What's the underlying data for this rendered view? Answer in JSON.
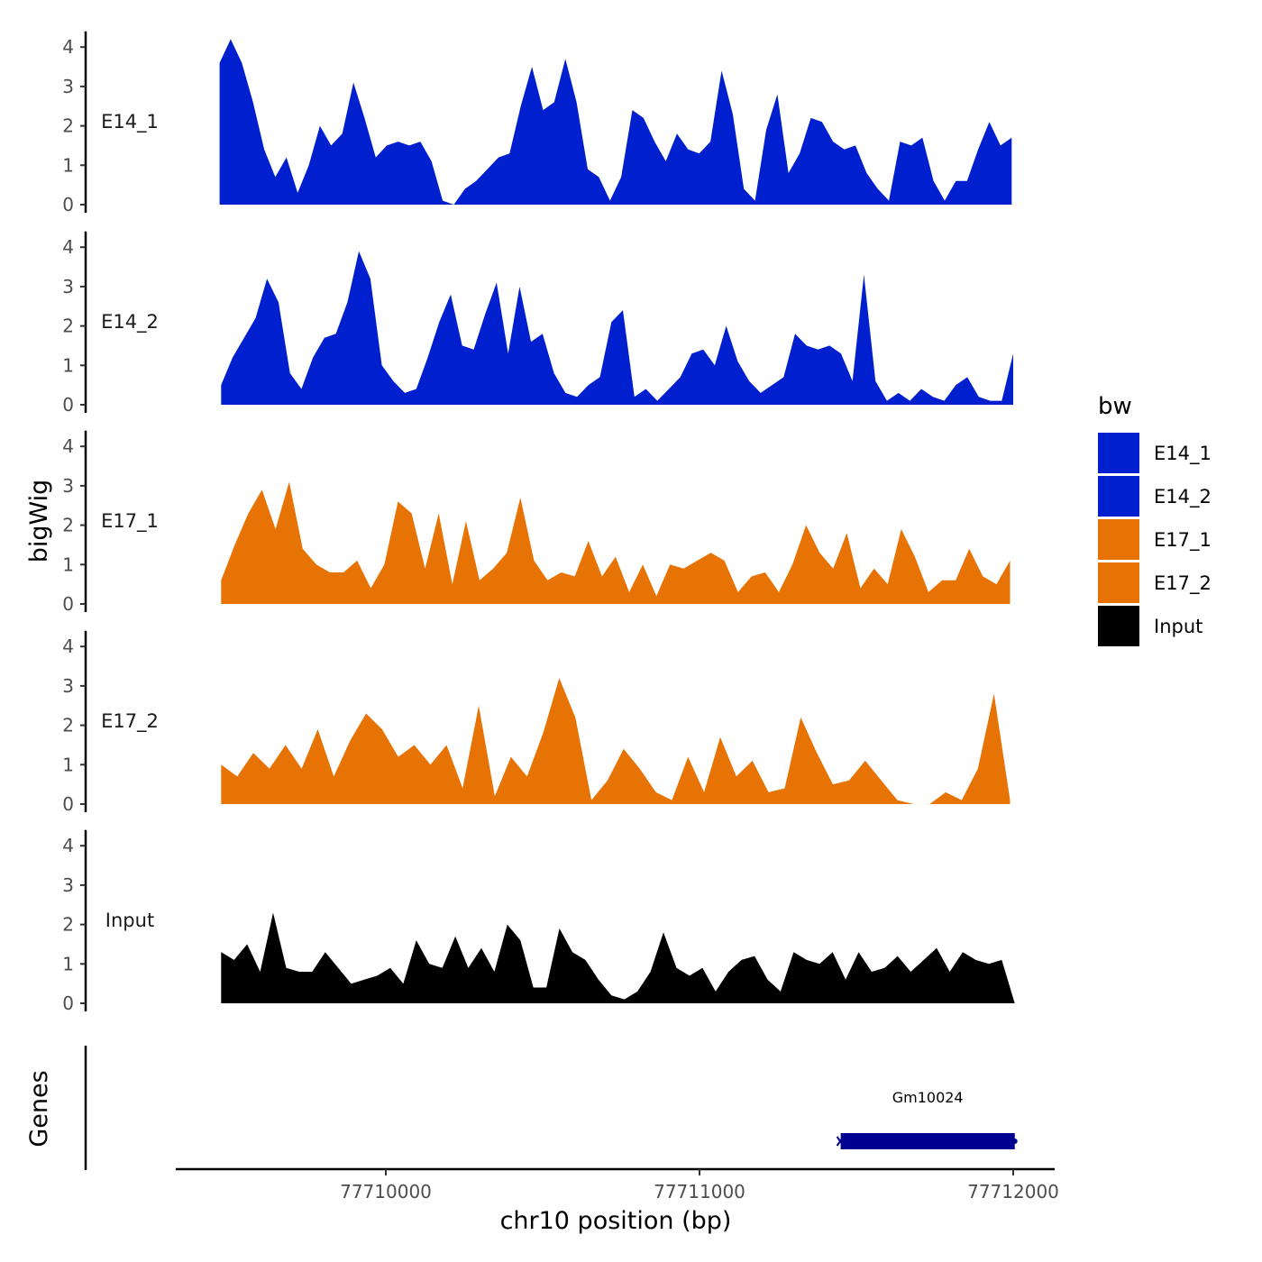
{
  "chart_data": {
    "type": "area",
    "ylabel": "bigWig",
    "xlabel": "chr10 position (bp)",
    "xlim": [
      77709330,
      77712130
    ],
    "x_ticks": [
      77710000,
      77711000,
      77712000
    ],
    "x_tick_labels": [
      "77710000",
      "77711000",
      "77712000"
    ],
    "ylim": [
      0,
      4.5
    ],
    "y_ticks": [
      0,
      1,
      2,
      3,
      4
    ],
    "y_tick_labels": [
      "0",
      "1",
      "2",
      "3",
      "4"
    ],
    "genes_label": "Genes",
    "legend": {
      "title": "bw",
      "position": "right",
      "entries": [
        {
          "label": "E14_1",
          "color": "#0020d0"
        },
        {
          "label": "E14_2",
          "color": "#0020d0"
        },
        {
          "label": "E17_1",
          "color": "#e87305"
        },
        {
          "label": "E17_2",
          "color": "#e87305"
        },
        {
          "label": "Input",
          "color": "#000000"
        }
      ]
    },
    "series": [
      {
        "name": "E14_1",
        "label": "E14_1",
        "color": "#0020d0",
        "x_start": 77709470,
        "x_end": 77711995,
        "values": [
          3.6,
          4.2,
          3.6,
          2.6,
          1.4,
          0.7,
          1.2,
          0.3,
          1.0,
          2.0,
          1.5,
          1.8,
          3.1,
          2.2,
          1.2,
          1.5,
          1.6,
          1.5,
          1.6,
          1.1,
          0.1,
          0.0,
          0.4,
          0.6,
          0.9,
          1.2,
          1.3,
          2.5,
          3.5,
          2.4,
          2.6,
          3.7,
          2.6,
          0.9,
          0.7,
          0.1,
          0.7,
          2.4,
          2.2,
          1.6,
          1.1,
          1.8,
          1.4,
          1.3,
          1.6,
          3.4,
          2.3,
          0.4,
          0.1,
          1.9,
          2.8,
          0.8,
          1.3,
          2.2,
          2.1,
          1.6,
          1.4,
          1.5,
          0.8,
          0.4,
          0.1,
          1.6,
          1.5,
          1.7,
          0.6,
          0.1,
          0.6,
          0.6,
          1.4,
          2.1,
          1.5,
          1.7
        ]
      },
      {
        "name": "E14_2",
        "label": "E14_2",
        "color": "#0020d0",
        "x_start": 77709475,
        "x_end": 77712000,
        "values": [
          0.5,
          1.2,
          1.7,
          2.2,
          3.2,
          2.6,
          0.8,
          0.4,
          1.2,
          1.7,
          1.8,
          2.6,
          3.9,
          3.2,
          1.0,
          0.6,
          0.3,
          0.4,
          1.2,
          2.1,
          2.8,
          1.5,
          1.4,
          2.3,
          3.1,
          1.3,
          3.0,
          1.6,
          1.8,
          0.8,
          0.3,
          0.2,
          0.5,
          0.7,
          2.1,
          2.4,
          0.2,
          0.4,
          0.1,
          0.4,
          0.7,
          1.3,
          1.4,
          1.0,
          2.0,
          1.1,
          0.6,
          0.3,
          0.5,
          0.7,
          1.8,
          1.5,
          1.4,
          1.5,
          1.3,
          0.6,
          3.3,
          0.6,
          0.1,
          0.3,
          0.1,
          0.4,
          0.2,
          0.1,
          0.5,
          0.7,
          0.2,
          0.1,
          0.1,
          1.3
        ]
      },
      {
        "name": "E17_1",
        "label": "E17_1",
        "color": "#e87305",
        "x_start": 77709475,
        "x_end": 77711990,
        "values": [
          0.6,
          1.5,
          2.3,
          2.9,
          1.9,
          3.1,
          1.4,
          1.0,
          0.8,
          0.8,
          1.1,
          0.4,
          1.0,
          2.6,
          2.3,
          0.9,
          2.3,
          0.5,
          2.1,
          0.6,
          0.9,
          1.3,
          2.7,
          1.1,
          0.6,
          0.8,
          0.7,
          1.6,
          0.7,
          1.2,
          0.3,
          1.0,
          0.2,
          1.0,
          0.9,
          1.1,
          1.3,
          1.1,
          0.3,
          0.7,
          0.8,
          0.3,
          1.0,
          2.0,
          1.3,
          0.9,
          1.8,
          0.4,
          0.9,
          0.5,
          1.9,
          1.2,
          0.3,
          0.6,
          0.6,
          1.4,
          0.7,
          0.5,
          1.1
        ]
      },
      {
        "name": "E17_2",
        "label": "E17_2",
        "color": "#e87305",
        "x_start": 77709475,
        "x_end": 77711990,
        "values": [
          1.0,
          0.7,
          1.3,
          0.9,
          1.5,
          0.9,
          1.9,
          0.7,
          1.6,
          2.3,
          1.9,
          1.2,
          1.5,
          1.0,
          1.5,
          0.4,
          2.5,
          0.2,
          1.2,
          0.7,
          1.8,
          3.2,
          2.2,
          0.1,
          0.6,
          1.4,
          0.9,
          0.3,
          0.1,
          1.2,
          0.3,
          1.7,
          0.7,
          1.1,
          0.3,
          0.4,
          2.2,
          1.3,
          0.5,
          0.6,
          1.1,
          0.6,
          0.1,
          0.0,
          0.0,
          0.3,
          0.1,
          0.9,
          2.8,
          0.1
        ]
      },
      {
        "name": "Input",
        "label": "Input",
        "color": "#000000",
        "x_start": 77709475,
        "x_end": 77712005,
        "values": [
          1.3,
          1.1,
          1.5,
          0.8,
          2.3,
          0.9,
          0.8,
          0.8,
          1.3,
          0.9,
          0.5,
          0.6,
          0.7,
          0.9,
          0.5,
          1.6,
          1.0,
          0.9,
          1.7,
          0.9,
          1.4,
          0.8,
          2.0,
          1.6,
          0.4,
          0.4,
          1.9,
          1.3,
          1.1,
          0.6,
          0.2,
          0.1,
          0.3,
          0.8,
          1.8,
          0.9,
          0.7,
          0.9,
          0.3,
          0.8,
          1.1,
          1.2,
          0.6,
          0.3,
          1.3,
          1.1,
          1.0,
          1.3,
          0.6,
          1.3,
          0.8,
          0.9,
          1.2,
          0.8,
          1.1,
          1.4,
          0.8,
          1.3,
          1.1,
          1.0,
          1.1,
          0.0
        ]
      }
    ],
    "gene": {
      "name": "Gm10024",
      "start": 77711450,
      "end": 77712005,
      "strand": "-",
      "color": "#000090"
    }
  }
}
